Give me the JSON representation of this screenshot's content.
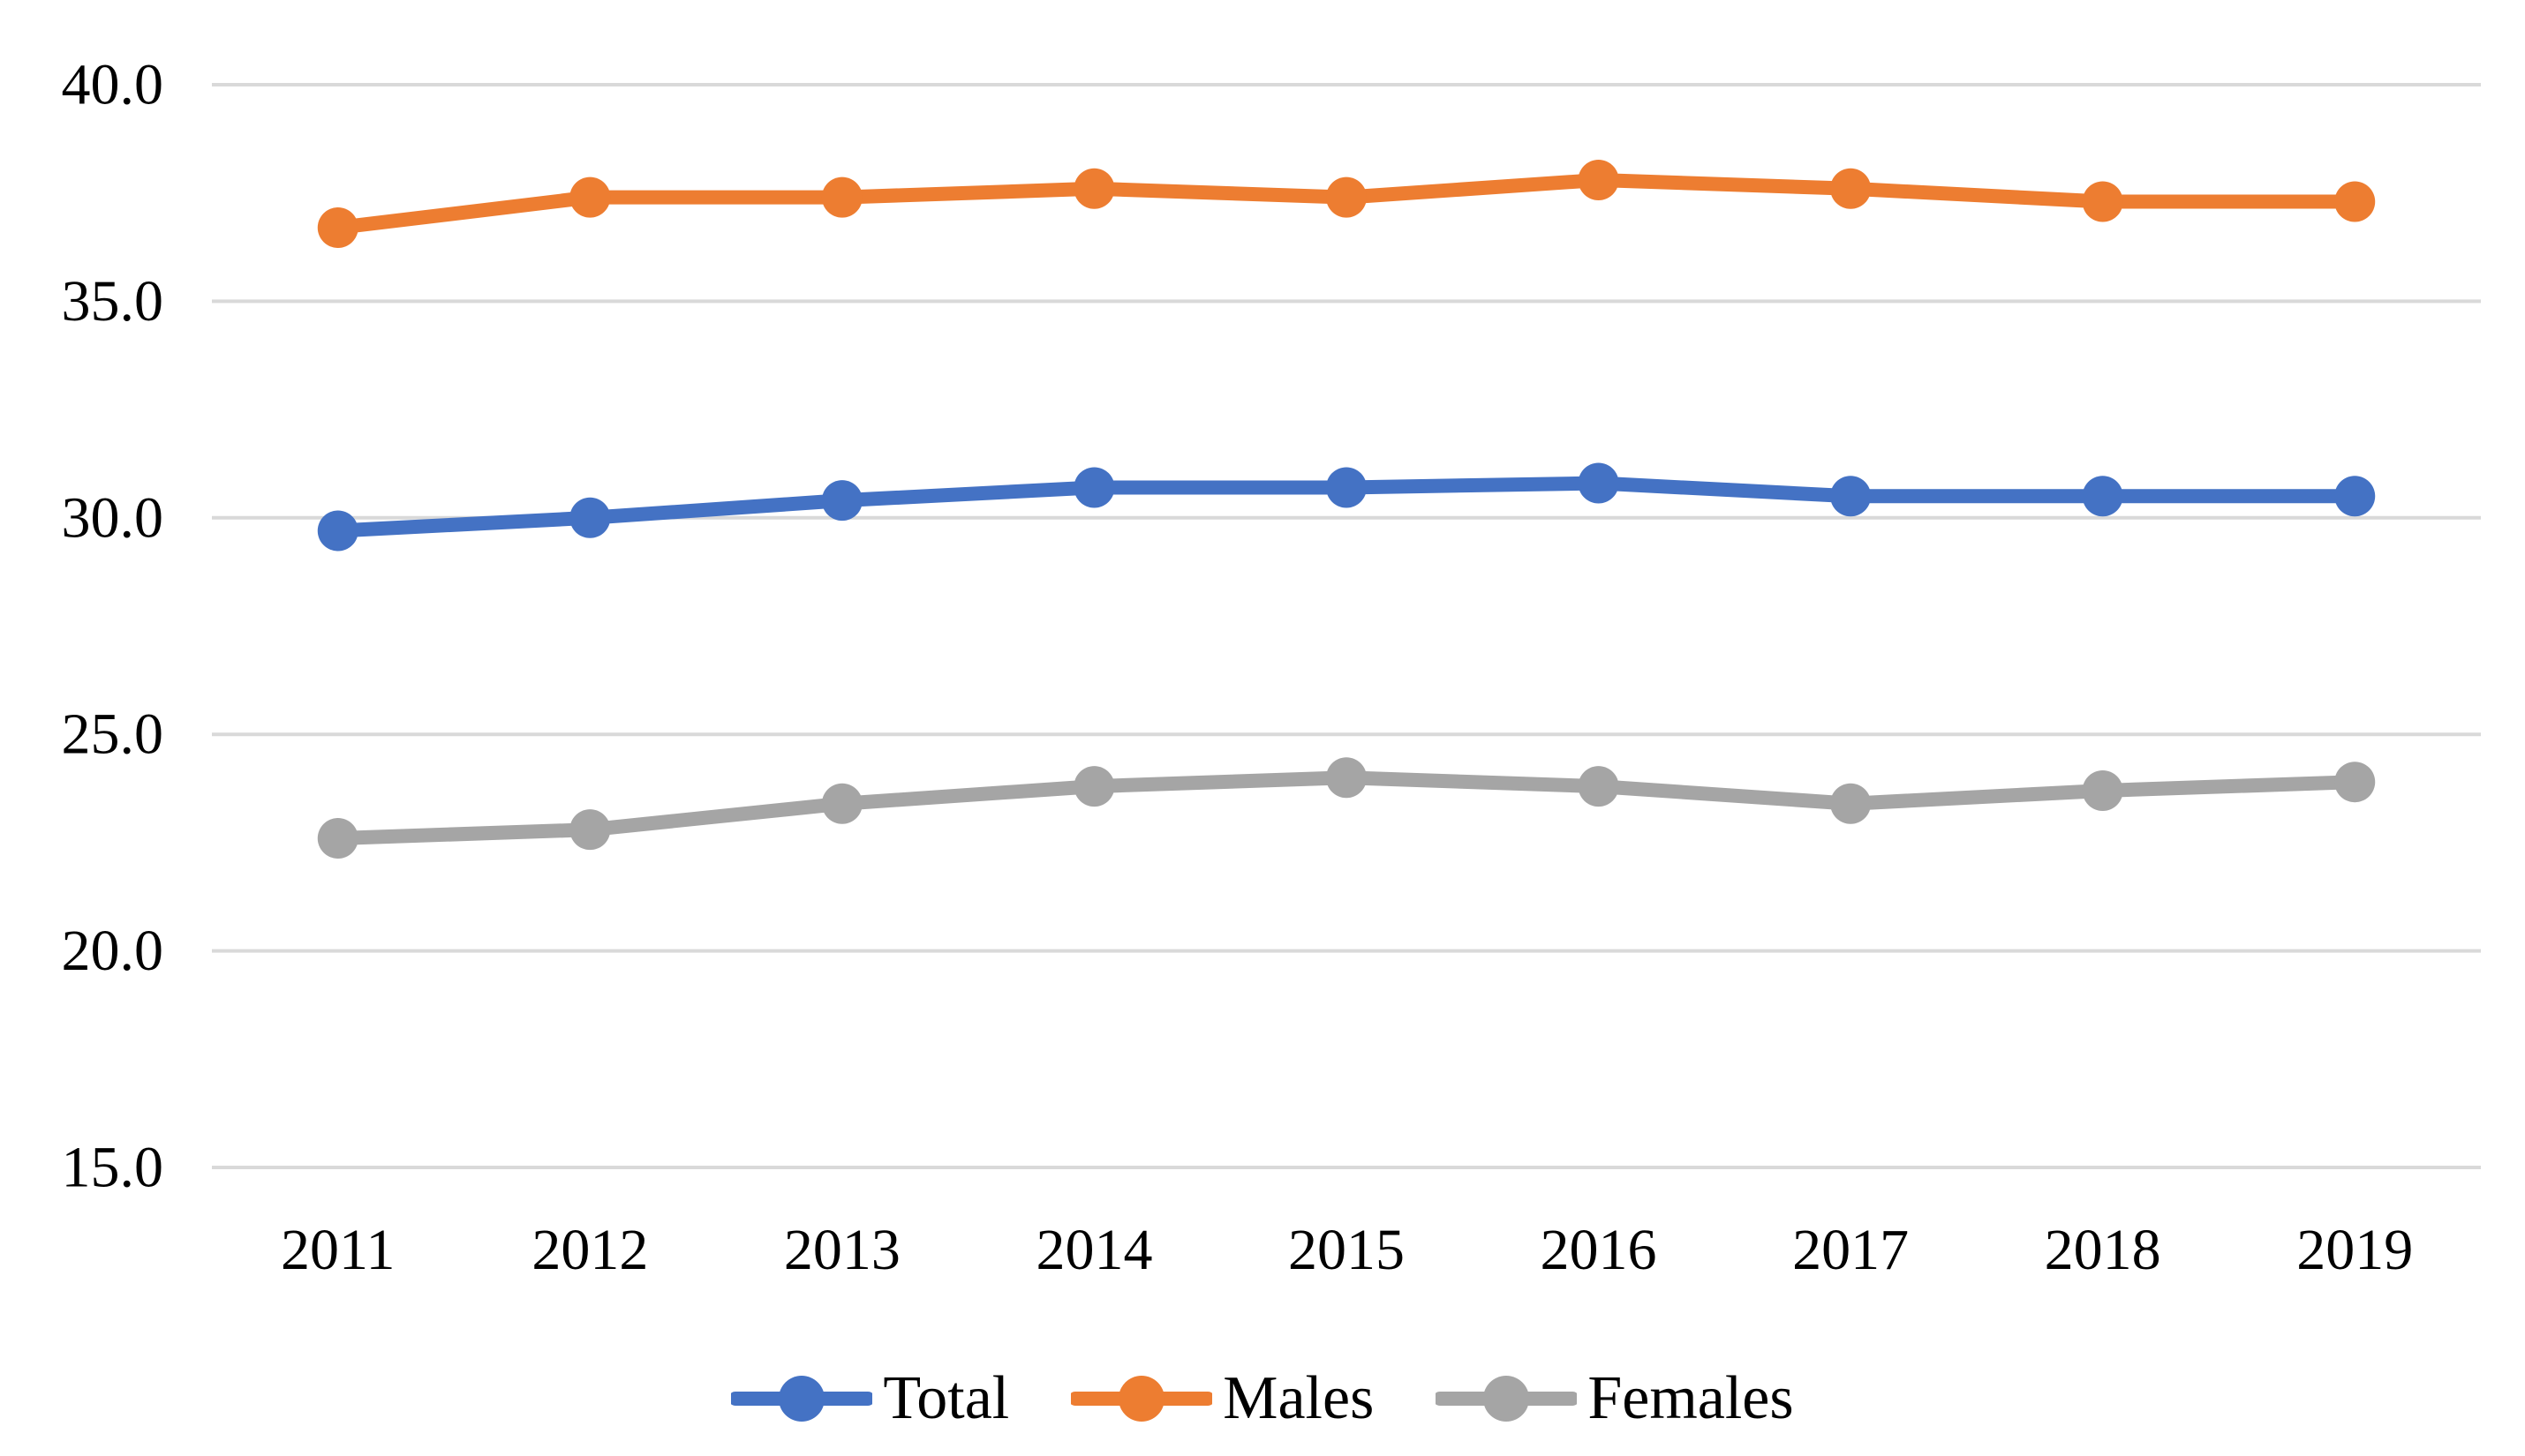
{
  "chart_data": {
    "type": "line",
    "title": "",
    "xlabel": "",
    "ylabel": "",
    "x_categories": [
      "2011",
      "2012",
      "2013",
      "2014",
      "2015",
      "2016",
      "2017",
      "2018",
      "2019"
    ],
    "series": [
      {
        "name": "Total",
        "color": "#4472C4",
        "values": [
          29.7,
          30.0,
          30.4,
          30.7,
          30.7,
          30.8,
          30.5,
          30.5,
          30.5
        ]
      },
      {
        "name": "Males",
        "color": "#ED7D31",
        "values": [
          36.7,
          37.4,
          37.4,
          37.6,
          37.4,
          37.8,
          37.6,
          37.3,
          37.3
        ]
      },
      {
        "name": "Females",
        "color": "#A5A5A5",
        "values": [
          22.6,
          22.8,
          23.4,
          23.8,
          24.0,
          23.8,
          23.4,
          23.7,
          23.9
        ]
      }
    ],
    "ylim": [
      15,
      40
    ],
    "ytick_step": 5,
    "ytick_labels": [
      "15.0",
      "20.0",
      "25.0",
      "30.0",
      "35.0",
      "40.0"
    ],
    "grid": true,
    "legend_position": "bottom",
    "marker": "circle",
    "gridline_color": "#D9D9D9",
    "text_color": "#000000",
    "background_color": "#FFFFFF"
  }
}
